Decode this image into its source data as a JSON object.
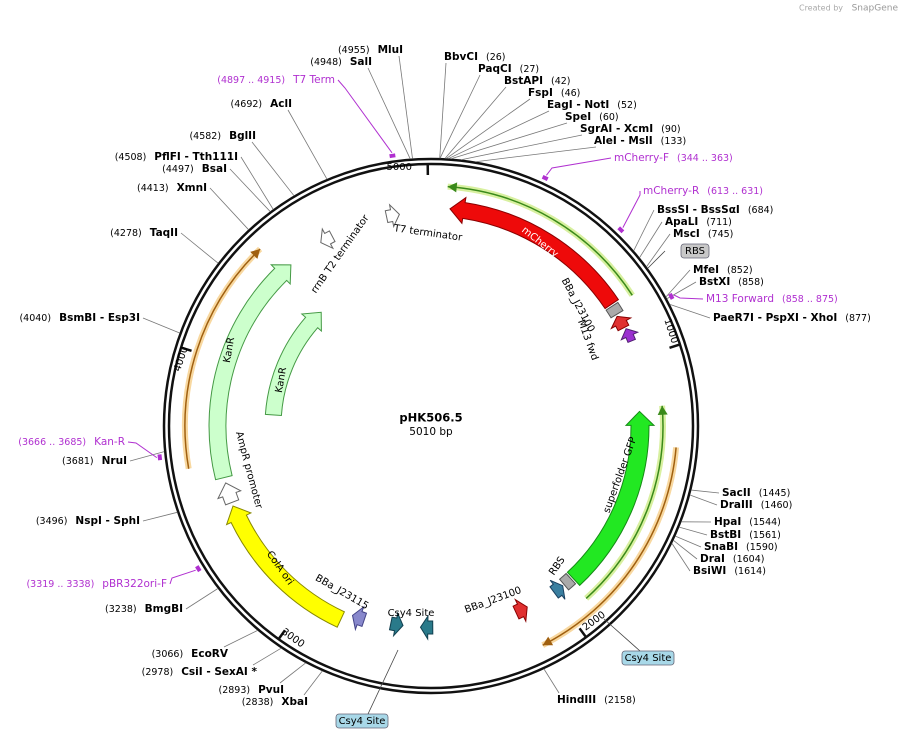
{
  "header": {
    "created_by": "Created by",
    "brand": "SnapGene"
  },
  "plasmid": {
    "name": "pHK506.5",
    "length": "5010 bp"
  },
  "ring_ticks": [
    "5000",
    "1000",
    "2000",
    "3000",
    "4000"
  ],
  "enzymes": [
    {
      "label": "BbvCI",
      "position": "(26)"
    },
    {
      "label": "PaqCI",
      "position": "(27)"
    },
    {
      "label": "BstAPI",
      "position": "(42)"
    },
    {
      "label": "FspI",
      "position": "(46)"
    },
    {
      "label": "EagI - NotI",
      "position": "(52)"
    },
    {
      "label": "SpeI",
      "position": "(60)"
    },
    {
      "label": "SgrAI - XcmI",
      "position": "(90)"
    },
    {
      "label": "AleI - MslI",
      "position": "(133)"
    },
    {
      "label": "BssSI - BssSαI",
      "position": "(684)"
    },
    {
      "label": "ApaLI",
      "position": "(711)"
    },
    {
      "label": "MscI",
      "position": "(745)"
    },
    {
      "label": "MfeI",
      "position": "(852)"
    },
    {
      "label": "BstXI",
      "position": "(858)"
    },
    {
      "label": "PaeR7I - PspXI - XhoI",
      "position": "(877)"
    },
    {
      "label": "SacII",
      "position": "(1445)"
    },
    {
      "label": "DraIII",
      "position": "(1460)"
    },
    {
      "label": "HpaI",
      "position": "(1544)"
    },
    {
      "label": "BstBI",
      "position": "(1561)"
    },
    {
      "label": "SnaBI",
      "position": "(1590)"
    },
    {
      "label": "DraI",
      "position": "(1604)"
    },
    {
      "label": "BsiWI",
      "position": "(1614)"
    },
    {
      "label": "HindIII",
      "position": "(2158)"
    },
    {
      "label": "XbaI",
      "position": "(2838)"
    },
    {
      "label": "PvuI",
      "position": "(2893)"
    },
    {
      "label": "CsiI - SexAI *",
      "position": "(2978)"
    },
    {
      "label": "EcoRV",
      "position": "(3066)"
    },
    {
      "label": "BmgBI",
      "position": "(3238)"
    },
    {
      "label": "NspI - SphI",
      "position": "(3496)"
    },
    {
      "label": "NruI",
      "position": "(3681)"
    },
    {
      "label": "BsmBI - Esp3I",
      "position": "(4040)"
    },
    {
      "label": "TaqII",
      "position": "(4278)"
    },
    {
      "label": "XmnI",
      "position": "(4413)"
    },
    {
      "label": "BsaI",
      "position": "(4497)"
    },
    {
      "label": "PflFI - Tth111I",
      "position": "(4508)"
    },
    {
      "label": "BglII",
      "position": "(4582)"
    },
    {
      "label": "AclI",
      "position": "(4692)"
    },
    {
      "label": "SalI",
      "position": "(4948)"
    },
    {
      "label": "MluI",
      "position": "(4955)"
    }
  ],
  "primers": [
    {
      "name": "T7 Term",
      "range": "(4897 .. 4915)"
    },
    {
      "name": "mCherry-F",
      "range": "(344 .. 363)"
    },
    {
      "name": "mCherry-R",
      "range": "(613 .. 631)"
    },
    {
      "name": "M13 Forward",
      "range": "(858 .. 875)"
    },
    {
      "name": "Kan-R",
      "range": "(3666 .. 3685)"
    },
    {
      "name": "pBR322ori-F",
      "range": "(3319 .. 3338)"
    }
  ],
  "features": [
    "mCherry",
    "BBa_J23100",
    "M13 fwd",
    "superfolder GFP",
    "RBS",
    "BBa_J23100",
    "Csy4 Site",
    "BBa_J23115",
    "ColA ori",
    "AmpR promoter",
    "KanR",
    "KanR",
    "rrnB T2 terminator",
    "T7 terminator"
  ],
  "site_boxes": [
    "RBS",
    "Csy4 Site",
    "Csy4 Site"
  ]
}
